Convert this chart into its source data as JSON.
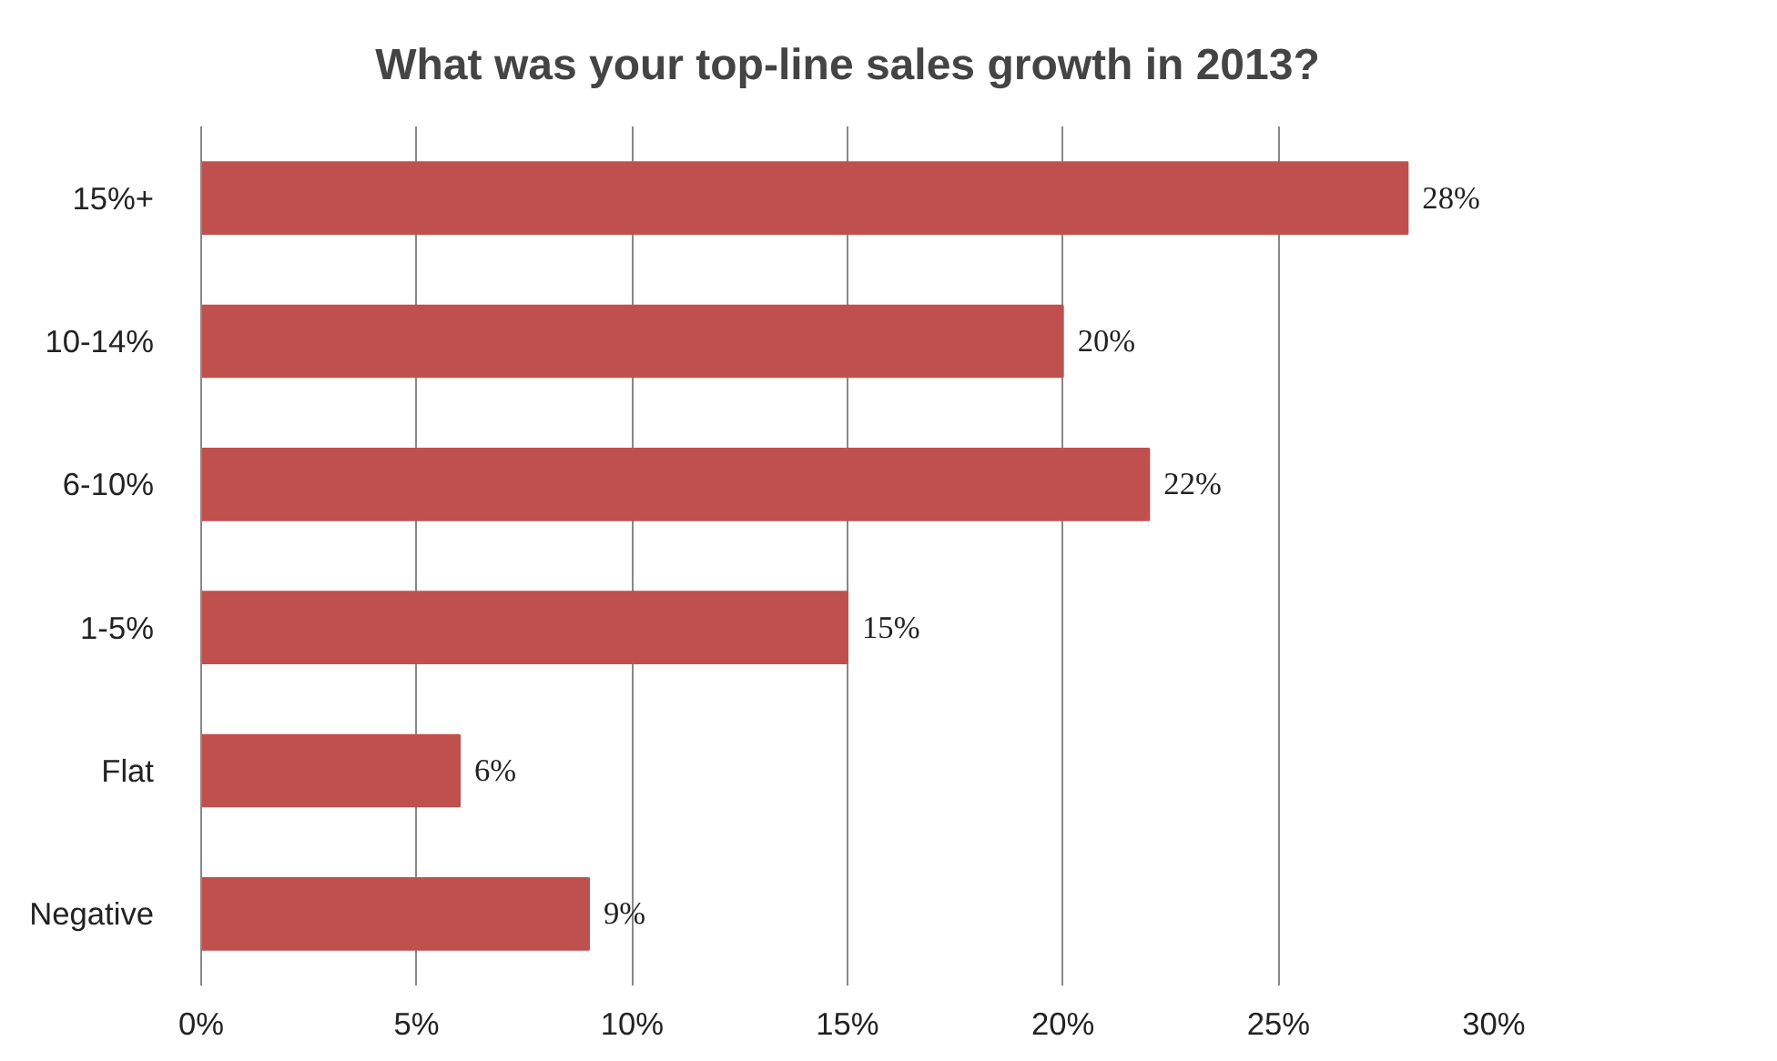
{
  "chart_data": {
    "type": "bar",
    "orientation": "horizontal",
    "title": "What was your top-line sales growth in 2013?",
    "categories": [
      "15%+",
      "10-14%",
      "6-10%",
      "1-5%",
      "Flat",
      "Negative"
    ],
    "values": [
      28,
      20,
      22,
      15,
      6,
      9
    ],
    "value_labels": [
      "28%",
      "20%",
      "22%",
      "15%",
      "6%",
      "9%"
    ],
    "color": "#c0504d",
    "xlim": [
      0,
      30
    ],
    "xticks": [
      {
        "value": 0,
        "label": "0%"
      },
      {
        "value": 5,
        "label": "5%"
      },
      {
        "value": 10,
        "label": "10%"
      },
      {
        "value": 15,
        "label": "15%"
      },
      {
        "value": 20,
        "label": "20%"
      },
      {
        "value": 25,
        "label": "25%"
      },
      {
        "value": 30,
        "label": "30%"
      }
    ],
    "grid": "x"
  }
}
